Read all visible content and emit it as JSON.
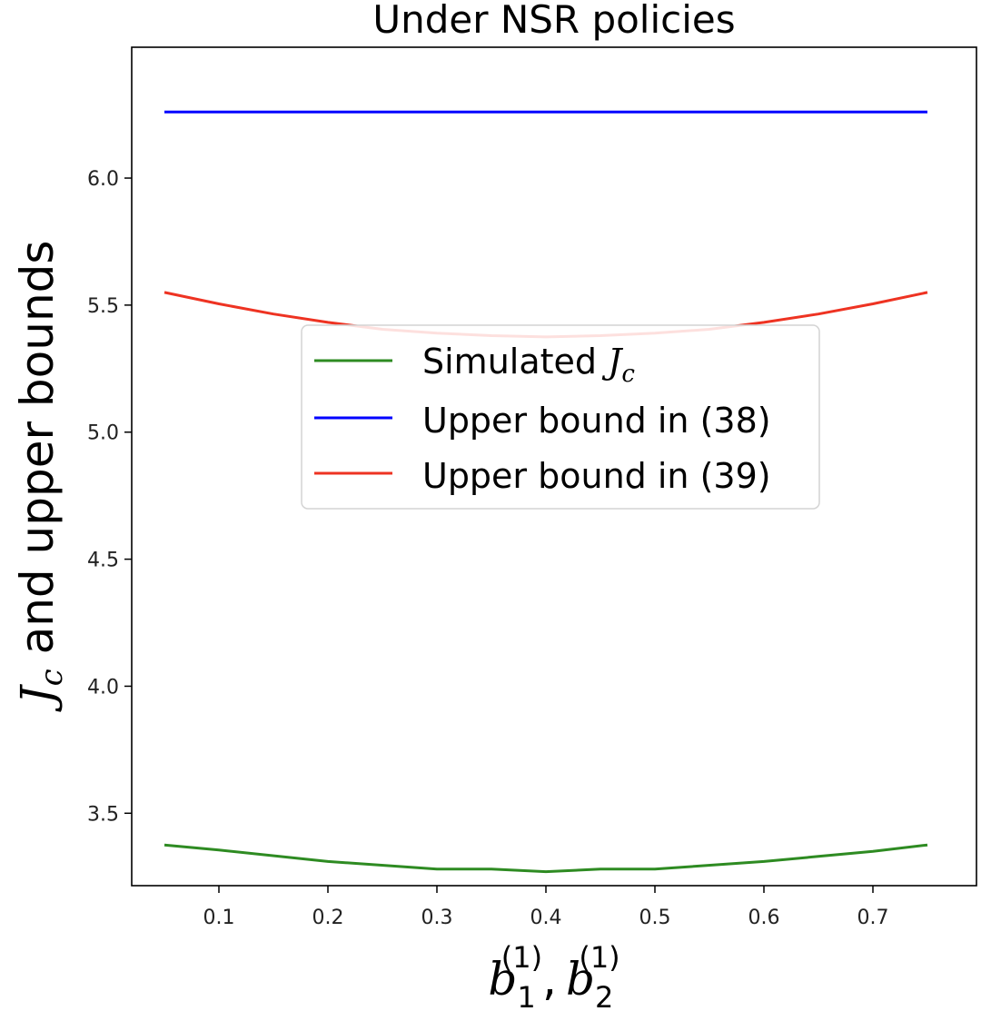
{
  "chart_data": {
    "type": "line",
    "title": "Under NSR policies",
    "xlabel": {
      "b1": "b",
      "sub1": "1",
      "sup1": "(1)",
      "sep": ",",
      "b2": "b",
      "sub2": "2",
      "sup2": "(1)"
    },
    "ylabel": {
      "j": "J",
      "sub": "c",
      "rest": " and upper bounds"
    },
    "xlim": [
      0.02,
      0.795
    ],
    "ylim": [
      3.215,
      6.515
    ],
    "xticks": [
      "0.1",
      "0.2",
      "0.3",
      "0.4",
      "0.5",
      "0.6",
      "0.7"
    ],
    "yticks": [
      "3.5",
      "4.0",
      "4.5",
      "5.0",
      "5.5",
      "6.0"
    ],
    "grid": false,
    "legend_position": "center",
    "series": [
      {
        "name": "Simulated ",
        "name_math": {
          "j": "J",
          "sub": "c"
        },
        "color": "#2e8b22",
        "x": [
          0.05,
          0.1,
          0.2,
          0.3,
          0.35,
          0.4,
          0.45,
          0.5,
          0.6,
          0.65,
          0.7,
          0.75
        ],
        "y": [
          3.375,
          3.355,
          3.31,
          3.28,
          3.28,
          3.27,
          3.28,
          3.28,
          3.31,
          3.33,
          3.35,
          3.375
        ]
      },
      {
        "name": "Upper bound in (38)",
        "color": "#0000ff",
        "x": [
          0.05,
          0.75
        ],
        "y": [
          6.26,
          6.26
        ]
      },
      {
        "name": "Upper bound in (39)",
        "color": "#ee3322",
        "x": [
          0.05,
          0.1,
          0.15,
          0.2,
          0.25,
          0.3,
          0.35,
          0.4,
          0.45,
          0.5,
          0.55,
          0.6,
          0.65,
          0.7,
          0.75
        ],
        "y": [
          5.55,
          5.505,
          5.465,
          5.432,
          5.405,
          5.39,
          5.38,
          5.375,
          5.38,
          5.39,
          5.405,
          5.432,
          5.465,
          5.505,
          5.55
        ]
      }
    ]
  }
}
